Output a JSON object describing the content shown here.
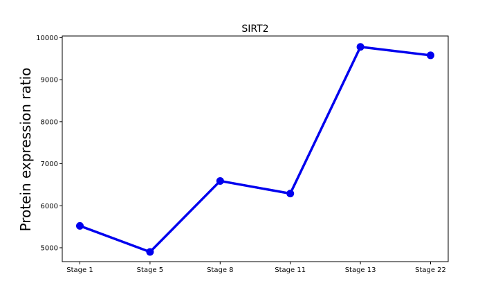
{
  "chart_data": {
    "type": "line",
    "title": "SIRT2",
    "xlabel": "",
    "ylabel": "Protein expression ratio",
    "categories": [
      "Stage 1",
      "Stage 5",
      "Stage 8",
      "Stage 11",
      "Stage 13",
      "Stage 22"
    ],
    "series": [
      {
        "name": "SIRT2",
        "values": [
          5520,
          4900,
          6590,
          6290,
          9780,
          9580
        ],
        "color": "#0000ee"
      }
    ],
    "ylim": [
      4670,
      10040
    ],
    "yticks": [
      5000,
      6000,
      7000,
      8000,
      9000,
      10000
    ],
    "grid": false
  }
}
